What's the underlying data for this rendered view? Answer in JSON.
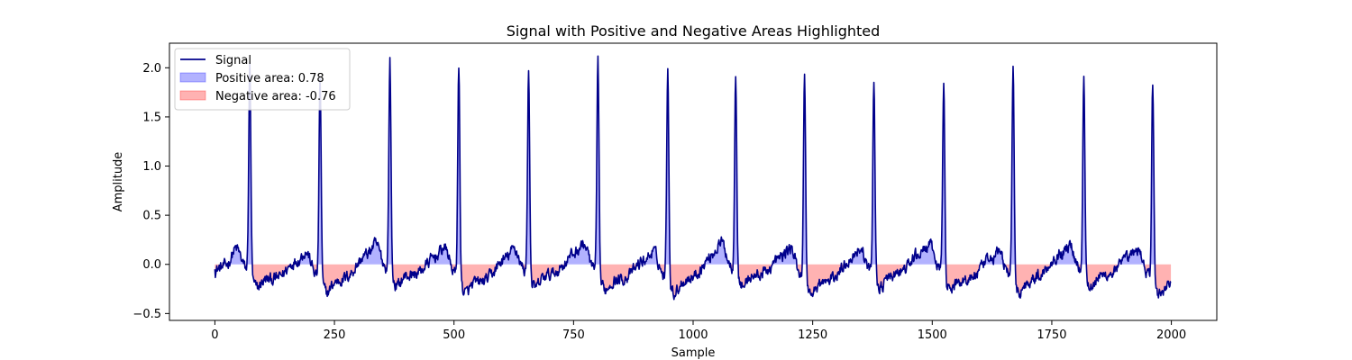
{
  "chart_data": {
    "type": "line",
    "title": "Signal with Positive and Negative Areas Highlighted",
    "xlabel": "Sample",
    "ylabel": "Amplitude",
    "xlim": [
      -95,
      2095
    ],
    "ylim": [
      -0.57,
      2.25
    ],
    "xticks": [
      0,
      250,
      500,
      750,
      1000,
      1250,
      1500,
      1750,
      2000
    ],
    "yticks": [
      -0.5,
      0.0,
      0.5,
      1.0,
      1.5,
      2.0
    ],
    "ytick_labels": [
      "−0.5",
      "0.0",
      "0.5",
      "1.0",
      "1.5",
      "2.0"
    ],
    "grid": false,
    "legend_position": "top-left",
    "sample_count": 2000,
    "series": [
      {
        "name": "Signal",
        "kind": "line",
        "color": "#00008b"
      },
      {
        "name": "Positive area: 0.78",
        "kind": "fill",
        "color": "#0000ff",
        "alpha": 0.3
      },
      {
        "name": "Negative area: -0.76",
        "kind": "fill",
        "color": "#ff0000",
        "alpha": 0.3
      }
    ],
    "peaks": [
      {
        "x": 73,
        "y": 2.08
      },
      {
        "x": 220,
        "y": 2.0
      },
      {
        "x": 366,
        "y": 2.13
      },
      {
        "x": 510,
        "y": 2.11
      },
      {
        "x": 656,
        "y": 2.06
      },
      {
        "x": 801,
        "y": 2.1
      },
      {
        "x": 947,
        "y": 2.14
      },
      {
        "x": 1089,
        "y": 2.01
      },
      {
        "x": 1233,
        "y": 2.0
      },
      {
        "x": 1378,
        "y": 1.97
      },
      {
        "x": 1524,
        "y": 1.94
      },
      {
        "x": 1669,
        "y": 2.1
      },
      {
        "x": 1817,
        "y": 2.0
      },
      {
        "x": 1961,
        "y": 1.96
      }
    ]
  }
}
